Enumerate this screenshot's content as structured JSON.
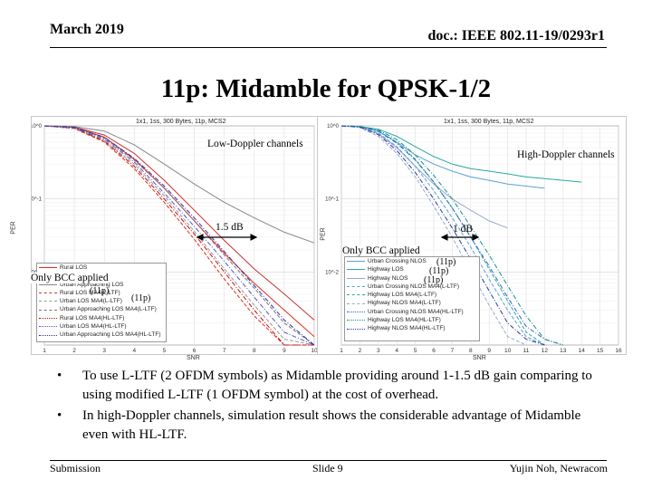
{
  "header": {
    "date": "March 2019",
    "doc_id": "doc.: IEEE 802.11-19/0293r1"
  },
  "title": "11p: Midamble for QPSK-1/2",
  "left_plot": {
    "title": "1x1, 1ss, 300 Bytes, 11p, MCS2",
    "ylabel": "PER",
    "xlabel": "SNR",
    "annotation_channels": "Low-Doppler channels",
    "annotation_gain": "1.5 dB",
    "annotation_bcc": "Only BCC applied",
    "annotation_11p": "(11p)",
    "annotation_11p_2": "(11p)"
  },
  "right_plot": {
    "title": "1x1, 1ss, 300 Bytes, 11p, MCS2",
    "ylabel": "PER",
    "xlabel": "SNR",
    "annotation_channels": "High-Doppler channels",
    "annotation_gain": "1 dB",
    "annotation_bcc": "Only BCC applied",
    "annotation_11p_a": "(11p)",
    "annotation_11p_b": "(11p)",
    "annotation_11p_c": "(11p)"
  },
  "chart_data": [
    {
      "type": "line",
      "title": "1x1, 1ss, 300 Bytes, 11p, MCS2",
      "xlabel": "SNR",
      "ylabel": "PER",
      "yscale": "log",
      "ylim": [
        0.001,
        1
      ],
      "xlim": [
        1,
        10
      ],
      "x_ticks": [
        1,
        2,
        3,
        4,
        5,
        6,
        7,
        8,
        9,
        10
      ],
      "y_ticks": [
        "10^0",
        "10^-1",
        "10^-2"
      ],
      "series": [
        {
          "name": "Rural LOS",
          "color": "#e0301e",
          "dash": "solid",
          "x": [
            1,
            2,
            3,
            4,
            5,
            6,
            7,
            8,
            9,
            10
          ],
          "y": [
            1,
            0.95,
            0.7,
            0.35,
            0.14,
            0.05,
            0.018,
            0.007,
            0.003,
            0.0013
          ]
        },
        {
          "name": "Urban LOS",
          "color": "#c83232",
          "dash": "solid",
          "x": [
            1,
            2,
            3,
            4,
            5,
            6,
            7,
            8,
            9,
            10
          ],
          "y": [
            1,
            0.96,
            0.75,
            0.42,
            0.18,
            0.07,
            0.027,
            0.011,
            0.005,
            0.0022
          ]
        },
        {
          "name": "Urban Approaching LOS",
          "color": "#888888",
          "dash": "solid",
          "x": [
            1,
            2,
            3,
            4,
            5,
            6,
            7,
            8,
            9,
            10
          ],
          "y": [
            1,
            0.98,
            0.85,
            0.55,
            0.3,
            0.16,
            0.09,
            0.055,
            0.035,
            0.025
          ]
        },
        {
          "name": "Rural LOS MA4(L-LTF)",
          "color": "#e0301e",
          "dash": "dashed",
          "x": [
            1,
            2,
            3,
            4,
            5,
            6,
            7,
            8,
            9,
            10
          ],
          "y": [
            1,
            0.92,
            0.6,
            0.26,
            0.09,
            0.028,
            0.008,
            0.0025,
            0.001,
            0.001
          ]
        },
        {
          "name": "Urban LOS MA4(L-LTF)",
          "color": "#9a9a9a",
          "dash": "dashed",
          "x": [
            1,
            2,
            3,
            4,
            5,
            6,
            7,
            8,
            9,
            10
          ],
          "y": [
            1,
            0.93,
            0.63,
            0.3,
            0.11,
            0.036,
            0.011,
            0.0035,
            0.0012,
            0.001
          ]
        },
        {
          "name": "Urban Approaching LOS MA4(L-LTF)",
          "color": "#777777",
          "dash": "dashed",
          "x": [
            1,
            2,
            3,
            4,
            5,
            6,
            7,
            8,
            9,
            10
          ],
          "y": [
            1,
            0.95,
            0.68,
            0.34,
            0.14,
            0.05,
            0.017,
            0.006,
            0.002,
            0.001
          ]
        },
        {
          "name": "Rural LOS MA4(HL-LTF)",
          "color": "#c01010",
          "dash": "dashdot",
          "x": [
            1,
            2,
            3,
            4,
            5,
            6,
            7,
            8,
            9,
            10
          ],
          "y": [
            1,
            0.93,
            0.62,
            0.28,
            0.1,
            0.033,
            0.01,
            0.003,
            0.001,
            0.001
          ]
        },
        {
          "name": "Urban LOS MA4(HL-LTF)",
          "color": "#5555cc",
          "dash": "dashdot",
          "x": [
            1,
            2,
            3,
            4,
            5,
            6,
            7,
            8,
            9,
            10
          ],
          "y": [
            1,
            0.94,
            0.66,
            0.32,
            0.12,
            0.042,
            0.014,
            0.0045,
            0.0015,
            0.001
          ]
        },
        {
          "name": "Urban Approaching LOS MA4(HL-LTF)",
          "color": "#3333aa",
          "dash": "dashdot",
          "x": [
            1,
            2,
            3,
            4,
            5,
            6,
            7,
            8,
            9,
            10
          ],
          "y": [
            1,
            0.96,
            0.7,
            0.36,
            0.15,
            0.055,
            0.019,
            0.0065,
            0.0022,
            0.001
          ]
        }
      ]
    },
    {
      "type": "line",
      "title": "1x1, 1ss, 300 Bytes, 11p, MCS2",
      "xlabel": "SNR",
      "ylabel": "PER",
      "yscale": "log",
      "ylim": [
        0.001,
        1
      ],
      "xlim": [
        1,
        16
      ],
      "x_ticks": [
        1,
        2,
        3,
        4,
        5,
        6,
        7,
        8,
        9,
        10,
        11,
        12,
        13,
        14,
        15,
        16
      ],
      "y_ticks": [
        "10^0",
        "10^-1",
        "10^-2"
      ],
      "series": [
        {
          "name": "Urban Crossing NLOS",
          "color": "#5aa0d8",
          "dash": "solid",
          "x": [
            1,
            2,
            3,
            4,
            5,
            6,
            7,
            8,
            9,
            10,
            11,
            12
          ],
          "y": [
            1,
            0.98,
            0.85,
            0.6,
            0.4,
            0.3,
            0.24,
            0.2,
            0.18,
            0.16,
            0.15,
            0.14
          ]
        },
        {
          "name": "Highway LOS",
          "color": "#2aa8a0",
          "dash": "solid",
          "x": [
            1,
            2,
            3,
            4,
            5,
            6,
            7,
            8,
            9,
            10,
            11,
            12,
            13,
            14
          ],
          "y": [
            1,
            0.98,
            0.9,
            0.72,
            0.52,
            0.38,
            0.3,
            0.26,
            0.24,
            0.22,
            0.2,
            0.19,
            0.18,
            0.17
          ]
        },
        {
          "name": "Highway NLOS",
          "color": "#9aa8d0",
          "dash": "solid",
          "x": [
            1,
            2,
            3,
            4,
            5,
            6,
            7,
            8,
            9,
            10
          ],
          "y": [
            1,
            0.96,
            0.78,
            0.5,
            0.28,
            0.16,
            0.1,
            0.07,
            0.05,
            0.04
          ]
        },
        {
          "name": "Urban Crossing NLOS MA4(L-LTF)",
          "color": "#5aa0d8",
          "dash": "dashed",
          "x": [
            1,
            2,
            3,
            4,
            5,
            6,
            7,
            8,
            9,
            10,
            11,
            12
          ],
          "y": [
            1,
            0.97,
            0.8,
            0.52,
            0.28,
            0.13,
            0.055,
            0.022,
            0.008,
            0.003,
            0.0013,
            0.001
          ]
        },
        {
          "name": "Highway LOS MA4(L-LTF)",
          "color": "#2aa8a0",
          "dash": "dashed",
          "x": [
            1,
            2,
            3,
            4,
            5,
            6,
            7,
            8,
            9,
            10,
            11,
            12
          ],
          "y": [
            1,
            0.98,
            0.85,
            0.6,
            0.35,
            0.17,
            0.075,
            0.03,
            0.011,
            0.004,
            0.0015,
            0.001
          ]
        },
        {
          "name": "Highway NLOS MA4(L-LTF)",
          "color": "#9aa8d0",
          "dash": "dashed",
          "x": [
            1,
            2,
            3,
            4,
            5,
            6,
            7,
            8,
            9,
            10,
            11
          ],
          "y": [
            1,
            0.95,
            0.72,
            0.42,
            0.2,
            0.08,
            0.03,
            0.01,
            0.0035,
            0.0013,
            0.001
          ]
        },
        {
          "name": "Urban Crossing NLOS MA4(HL-LTF)",
          "color": "#3366cc",
          "dash": "dashdot",
          "x": [
            1,
            2,
            3,
            4,
            5,
            6,
            7,
            8,
            9,
            10,
            11,
            12,
            13
          ],
          "y": [
            1,
            0.98,
            0.84,
            0.58,
            0.34,
            0.17,
            0.075,
            0.03,
            0.012,
            0.0045,
            0.0018,
            0.0012,
            0.001
          ]
        },
        {
          "name": "Highway LOS MA4(HL-LTF)",
          "color": "#1a8f88",
          "dash": "dashdot",
          "x": [
            1,
            2,
            3,
            4,
            5,
            6,
            7,
            8,
            9,
            10,
            11,
            12,
            13
          ],
          "y": [
            1,
            0.98,
            0.88,
            0.65,
            0.4,
            0.21,
            0.1,
            0.042,
            0.017,
            0.0065,
            0.0025,
            0.0012,
            0.001
          ]
        },
        {
          "name": "Highway NLOS MA4(HL-LTF)",
          "color": "#2a3a9a",
          "dash": "dashdot",
          "x": [
            1,
            2,
            3,
            4,
            5,
            6,
            7,
            8,
            9,
            10,
            11,
            12
          ],
          "y": [
            1,
            0.96,
            0.76,
            0.46,
            0.23,
            0.1,
            0.04,
            0.015,
            0.0055,
            0.002,
            0.0012,
            0.001
          ]
        }
      ]
    }
  ],
  "bullets": [
    "To use L-LTF (2 OFDM symbols) as Midamble providing around 1-1.5 dB gain comparing to using modified L-LTF (1 OFDM symbol) at the cost of overhead.",
    "In high-Doppler channels, simulation result shows the considerable advantage of Midamble even with HL-LTF."
  ],
  "bullet_marker": "•",
  "footer": {
    "left": "Submission",
    "center": "Slide 9",
    "right": "Yujin Noh, Newracom"
  }
}
